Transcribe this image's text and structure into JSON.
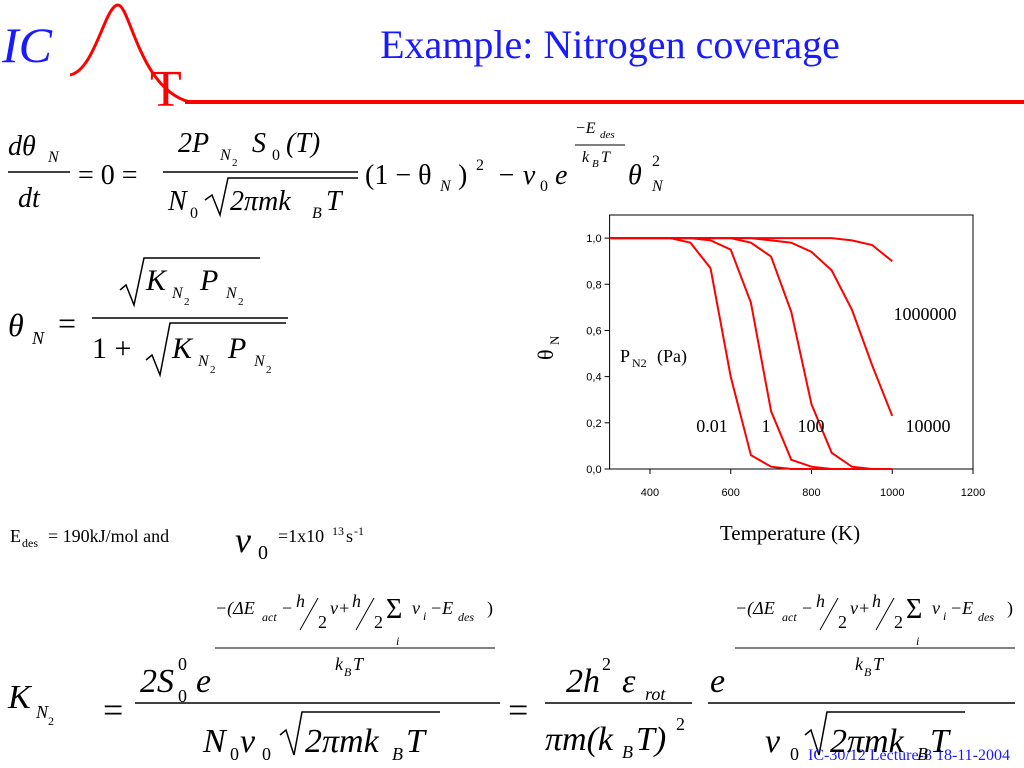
{
  "header": {
    "logo_left": "IC",
    "logo_right": "T",
    "title": "Example: Nitrogen coverage"
  },
  "eq1": [
    "dθ",
    "N",
    "dt",
    "= 0 =",
    "2P",
    "N",
    "2",
    "S",
    "0",
    "(T)",
    "N",
    "0",
    "2πmk",
    "B",
    "T",
    "(1 − θ",
    "N",
    ")",
    "2",
    "− ν",
    "0",
    "e",
    "−E",
    "des",
    "k",
    "B",
    "T",
    "θ",
    "2",
    "N"
  ],
  "eq2": [
    "θ",
    "N",
    "=",
    "K",
    "N",
    "2",
    "P",
    "N",
    "2",
    "1 +",
    "K",
    "N",
    "2",
    "P",
    "N",
    "2"
  ],
  "note": [
    "E",
    "des",
    "= 190kJ/mol and",
    "ν",
    "0",
    "=1x10",
    "13",
    "s",
    "-1"
  ],
  "eq3": [
    "K",
    "N",
    "2",
    "=",
    "2S",
    "0",
    "0",
    "e",
    "=",
    "2h",
    "2",
    "ε",
    "rot",
    "πm(k",
    "B",
    "T)",
    "2",
    "e",
    "N",
    "0",
    "ν",
    "0",
    "2πmk",
    "B",
    "T",
    "ν",
    "0",
    "2πmk",
    "B",
    "T"
  ],
  "exponent": [
    "−(ΔE",
    "act",
    "−",
    "h",
    "2",
    "ν+",
    "h",
    "2",
    "Σ",
    "i",
    "ν",
    "i",
    "−E",
    "des",
    ")",
    "k",
    "B",
    "T"
  ],
  "footer": "IC-30/12  Lecture-8 18-11-2004",
  "chart_data": {
    "type": "line",
    "x": [
      300,
      350,
      400,
      450,
      500,
      550,
      600,
      650,
      700,
      750,
      800,
      850,
      900,
      950,
      1000
    ],
    "series": [
      {
        "name": "0.01",
        "color": "#ff0000",
        "values": [
          1,
          1,
          1,
          1,
          0.98,
          0.87,
          0.4,
          0.06,
          0.01,
          0,
          0,
          0,
          0,
          0,
          0
        ]
      },
      {
        "name": "1",
        "color": "#ff0000",
        "values": [
          1,
          1,
          1,
          1,
          1,
          0.99,
          0.95,
          0.72,
          0.25,
          0.04,
          0.01,
          0,
          0,
          0,
          0
        ]
      },
      {
        "name": "100",
        "color": "#ff0000",
        "values": [
          1,
          1,
          1,
          1,
          1,
          1,
          1,
          0.98,
          0.92,
          0.68,
          0.28,
          0.07,
          0.01,
          0,
          0
        ]
      },
      {
        "name": "10000",
        "color": "#ff0000",
        "values": [
          1,
          1,
          1,
          1,
          1,
          1,
          1,
          1,
          0.99,
          0.98,
          0.94,
          0.86,
          0.69,
          0.45,
          0.23
        ]
      },
      {
        "name": "1000000",
        "color": "#ff0000",
        "values": [
          1,
          1,
          1,
          1,
          1,
          1,
          1,
          1,
          1,
          1,
          1,
          1,
          0.99,
          0.97,
          0.9
        ]
      }
    ],
    "xlim": [
      300,
      1200
    ],
    "ylim": [
      0,
      1.1
    ],
    "xticks": [
      400,
      600,
      800,
      1000,
      1200
    ],
    "yticks": [
      {
        "value": 0,
        "label": "0,0"
      },
      {
        "value": 0.2,
        "label": "0,2"
      },
      {
        "value": 0.4,
        "label": "0,4"
      },
      {
        "value": 0.6,
        "label": "0,6"
      },
      {
        "value": 0.8,
        "label": "0,8"
      },
      {
        "value": 1,
        "label": "1,0"
      }
    ],
    "ylabel": "θ",
    "ylabel_sub": "N",
    "xlabel": "Temperature (K)",
    "annotation": {
      "text": "P",
      "sub": "N2",
      "unit": "(Pa)"
    }
  }
}
